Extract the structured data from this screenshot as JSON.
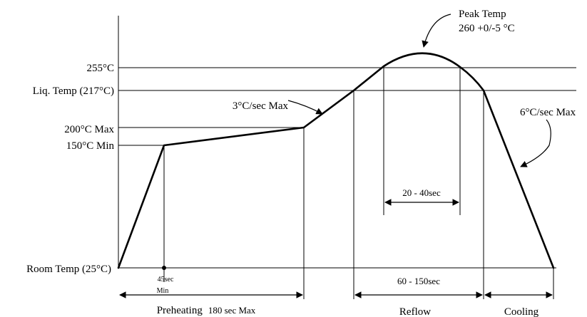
{
  "y_labels": {
    "peak_zone": "255°C",
    "liquidus": "Liq. Temp (217°C)",
    "preheat_max": "200°C Max",
    "preheat_min": "150°C Min",
    "room": "Room Temp (25°C)"
  },
  "annotations": {
    "peak_title": "Peak Temp",
    "peak_value": "260 +0/-5 °C",
    "ramp_up": "3°C/sec Max",
    "ramp_down": "6°C/sec Max",
    "dwell_peak": "20 - 40sec",
    "dwell_liquidus": "60 - 150sec",
    "min_time_value": "45sec",
    "min_time_unit": "Min"
  },
  "phases": {
    "preheating_label": "Preheating",
    "preheating_limit": "180 sec Max",
    "reflow": "Reflow",
    "cooling": "Cooling"
  },
  "colors": {
    "line": "#000000",
    "background": "#ffffff"
  }
}
